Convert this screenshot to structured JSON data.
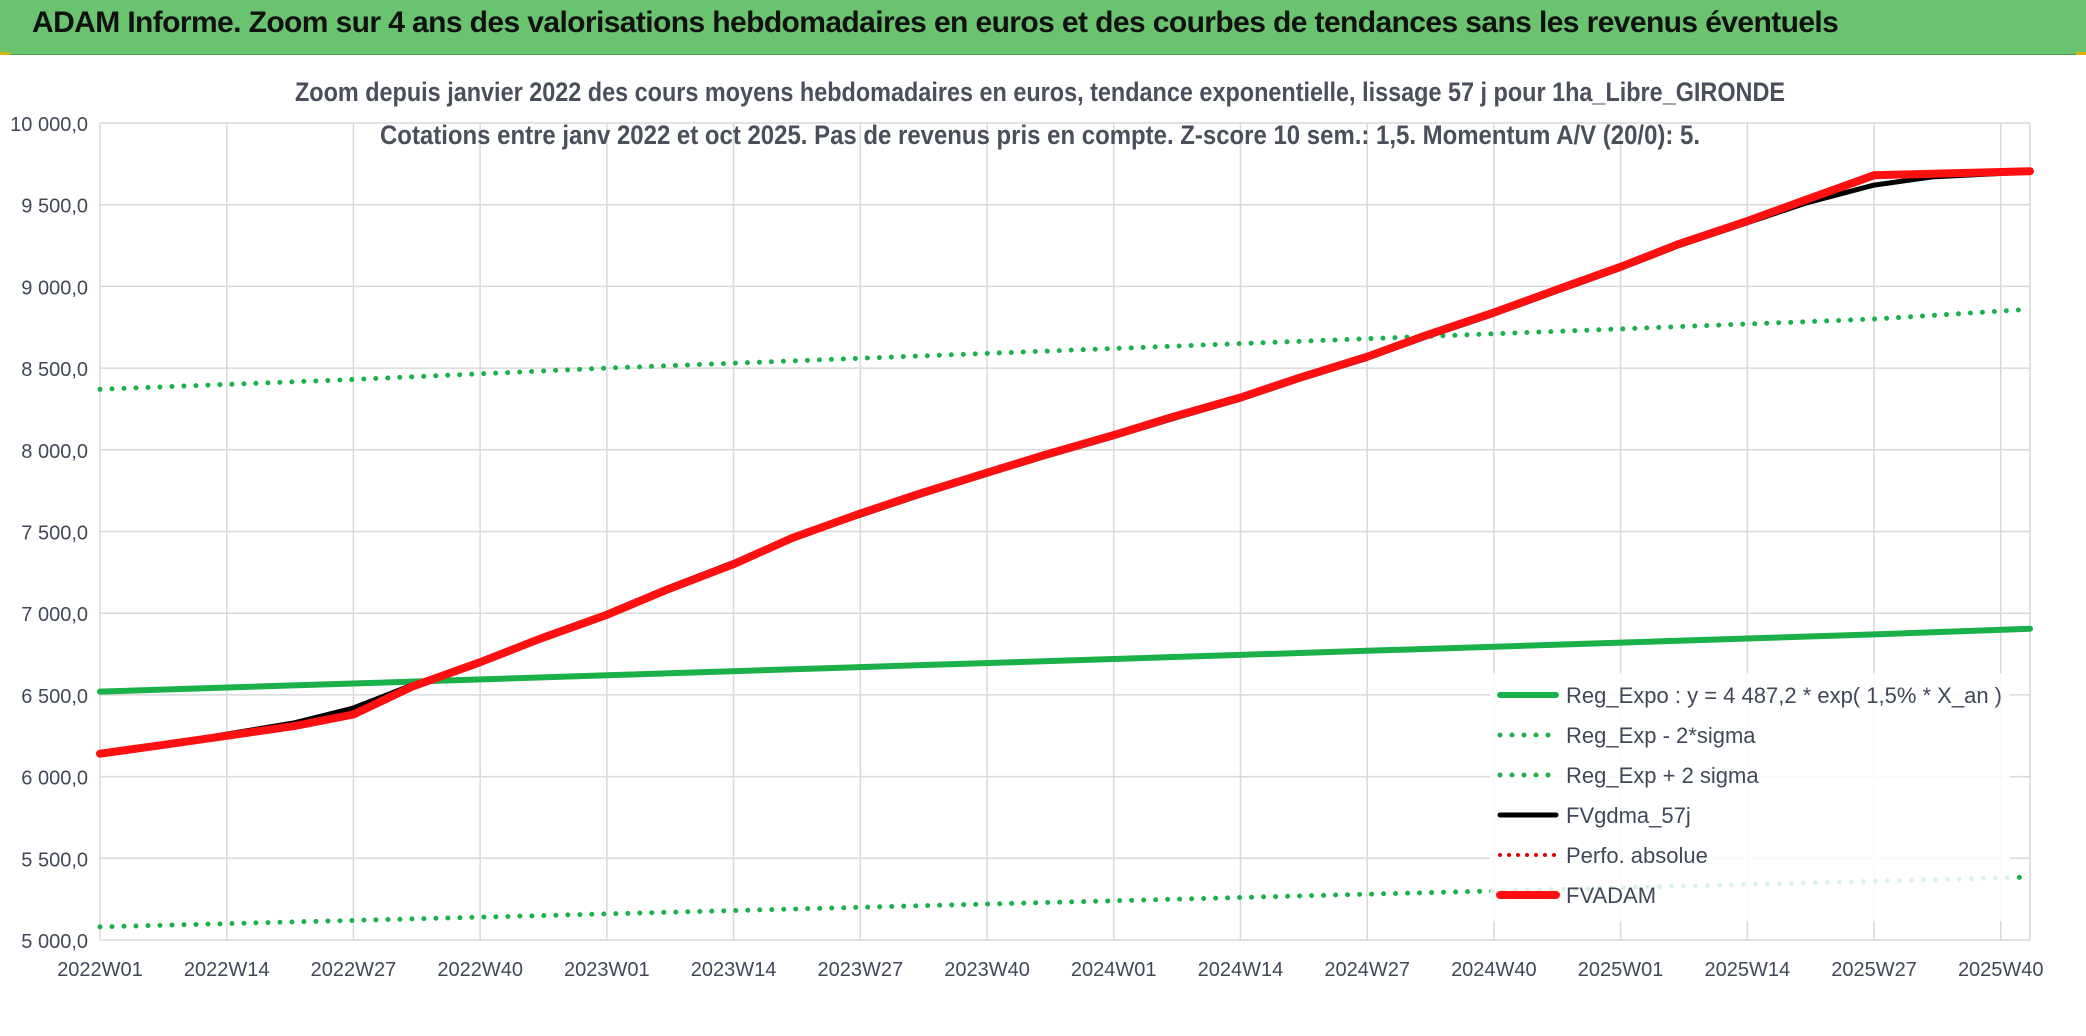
{
  "header": {
    "title": "ADAM Informe. Zoom sur 4 ans des valorisations hebdomadaires en euros et des courbes de tendances sans les revenus éventuels"
  },
  "colors": {
    "header_bg": "#6ac46f",
    "reg_expo": "#1ab04a",
    "reg_band": "#1ab04a",
    "fvgdma": "#000000",
    "perfo": "#e00000",
    "fvadam": "#ff1010",
    "grid": "#d9d9d9",
    "axis_text": "#404858"
  },
  "chart_data": {
    "type": "line",
    "title": "Zoom depuis janvier 2022 des cours moyens hebdomadaires en euros, tendance exponentielle, lissage 57 j pour 1ha_Libre_GIRONDE",
    "subtitle": "Cotations entre janv 2022 et oct 2025. Pas de revenus pris en compte. Z-score 10 sem.: 1,5. Momentum A/V (20/0): 5.",
    "x_ticks": [
      "2022W01",
      "2022W14",
      "2022W27",
      "2022W40",
      "2023W01",
      "2023W14",
      "2023W27",
      "2023W40",
      "2024W01",
      "2024W14",
      "2024W27",
      "2024W40",
      "2025W01",
      "2025W14",
      "2025W27",
      "2025W40"
    ],
    "x_range_weeks": [
      0,
      198
    ],
    "y_ticks": [
      "5 000,0",
      "5 500,0",
      "6 000,0",
      "6 500,0",
      "7 000,0",
      "7 500,0",
      "8 000,0",
      "8 500,0",
      "9 000,0",
      "9 500,0",
      "10 000,0"
    ],
    "ylim": [
      5000,
      10000
    ],
    "grid": true,
    "legend_position": "bottom-right",
    "legend": [
      {
        "key": "reg_expo",
        "label": "Reg_Expo : y = 4 487,2 * exp( 1,5% *  X_an )",
        "style": "solid-thick"
      },
      {
        "key": "reg_minus",
        "label": "Reg_Exp - 2*sigma",
        "style": "dotted-green"
      },
      {
        "key": "reg_plus",
        "label": "Reg_Exp + 2 sigma",
        "style": "dotted-green"
      },
      {
        "key": "fvgdma",
        "label": "FVgdma_57j",
        "style": "solid-black"
      },
      {
        "key": "perfo",
        "label": "Perfo. absolue",
        "style": "dotted-red"
      },
      {
        "key": "fvadam",
        "label": "FVADAM",
        "style": "solid-red-thick"
      }
    ],
    "series": [
      {
        "name": "Reg_Expo : y = 4 487,2 * exp( 1,5% *  X_an )",
        "key": "reg_expo",
        "x": [
          0,
          26,
          52,
          78,
          104,
          130,
          156,
          182,
          198
        ],
        "y": [
          6520,
          6570,
          6620,
          6670,
          6720,
          6770,
          6820,
          6870,
          6905
        ]
      },
      {
        "name": "Reg_Exp - 2*sigma",
        "key": "reg_minus",
        "x": [
          0,
          26,
          52,
          78,
          104,
          130,
          156,
          182,
          198
        ],
        "y": [
          5080,
          5120,
          5160,
          5200,
          5240,
          5280,
          5320,
          5360,
          5385
        ]
      },
      {
        "name": "Reg_Exp + 2 sigma",
        "key": "reg_plus",
        "x": [
          0,
          26,
          52,
          78,
          104,
          130,
          156,
          182,
          198
        ],
        "y": [
          8370,
          8430,
          8500,
          8560,
          8620,
          8680,
          8740,
          8800,
          8860
        ]
      },
      {
        "name": "FVgdma_57j",
        "key": "fvgdma",
        "x": [
          0,
          6,
          13,
          20,
          26,
          32,
          39,
          45,
          52,
          58,
          65,
          71,
          78,
          84,
          91,
          97,
          104,
          110,
          117,
          123,
          130,
          136,
          143,
          149,
          156,
          162,
          169,
          175,
          182,
          188,
          198
        ],
        "y": [
          6140,
          6190,
          6260,
          6330,
          6420,
          6560,
          6700,
          6840,
          7000,
          7150,
          7310,
          7460,
          7600,
          7720,
          7850,
          7960,
          8080,
          8190,
          8310,
          8430,
          8560,
          8690,
          8830,
          8960,
          9110,
          9250,
          9390,
          9510,
          9620,
          9670,
          9700
        ]
      },
      {
        "name": "FVADAM",
        "key": "fvadam",
        "x": [
          0,
          6,
          13,
          20,
          26,
          32,
          39,
          45,
          52,
          58,
          65,
          71,
          78,
          84,
          91,
          97,
          104,
          110,
          117,
          123,
          130,
          136,
          143,
          149,
          156,
          162,
          169,
          175,
          182,
          188,
          198
        ],
        "y": [
          6140,
          6190,
          6250,
          6310,
          6380,
          6550,
          6700,
          6840,
          6990,
          7140,
          7300,
          7460,
          7610,
          7730,
          7860,
          7970,
          8090,
          8200,
          8320,
          8440,
          8570,
          8700,
          8840,
          8970,
          9120,
          9260,
          9400,
          9530,
          9680,
          9690,
          9705
        ]
      }
    ]
  }
}
